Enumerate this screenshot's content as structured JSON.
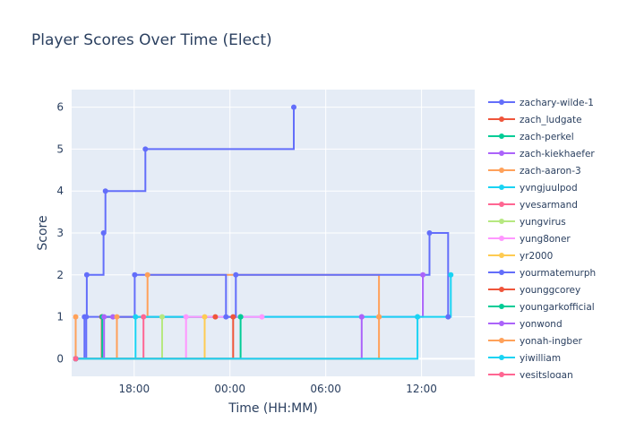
{
  "chart_data": {
    "type": "line",
    "line_shape": "step",
    "title": "Player Scores Over Time (Elect)",
    "xlabel": "Time (HH:MM)",
    "ylabel": "Score",
    "x_ticks": [
      "18:00",
      "00:00",
      "06:00",
      "12:00"
    ],
    "y_ticks": [
      0,
      1,
      2,
      3,
      4,
      5,
      6
    ],
    "xlim": [
      "14:05",
      "15:20 (+1 day)"
    ],
    "ylim": [
      -0.42,
      6.42
    ],
    "grid": true,
    "legend_position": "right",
    "series": [
      {
        "name": "zachary-wilde-1",
        "color": "#636efa",
        "points": [
          [
            "14:20",
            0
          ],
          [
            "14:53",
            1
          ],
          [
            "15:02",
            2
          ],
          [
            "16:05",
            3
          ],
          [
            "16:12",
            4
          ],
          [
            "18:42",
            5
          ],
          [
            "04:00",
            6
          ]
        ]
      },
      {
        "name": "zach_ludgate",
        "color": "#EF553B",
        "points": [
          [
            "14:20",
            0
          ],
          [
            "15:58",
            1
          ],
          [
            "23:05",
            1
          ]
        ]
      },
      {
        "name": "zach-perkel",
        "color": "#00cc96",
        "points": [
          [
            "14:20",
            0
          ],
          [
            "16:00",
            1
          ],
          [
            "00:40",
            1
          ]
        ]
      },
      {
        "name": "zach-kiekhaefer",
        "color": "#ab63fa",
        "points": [
          [
            "14:20",
            0
          ],
          [
            "16:07",
            1
          ],
          [
            "16:40",
            1
          ],
          [
            "08:15",
            1
          ],
          [
            "12:05",
            2
          ]
        ]
      },
      {
        "name": "zach-aaron-3",
        "color": "#FFA15A",
        "points": [
          [
            "14:20",
            1
          ],
          [
            "14:20",
            0
          ],
          [
            "16:55",
            1
          ],
          [
            "18:50",
            2
          ],
          [
            "09:20",
            1
          ]
        ]
      },
      {
        "name": "yvngjuulpod",
        "color": "#19d3f3",
        "points": [
          [
            "14:20",
            0
          ],
          [
            "18:05",
            1
          ],
          [
            "11:45",
            1
          ],
          [
            "13:50",
            2
          ]
        ]
      },
      {
        "name": "yvesarmand",
        "color": "#FF6692",
        "points": [
          [
            "14:20",
            0
          ],
          [
            "18:35",
            1
          ]
        ]
      },
      {
        "name": "yungvirus",
        "color": "#B6E880",
        "points": [
          [
            "14:20",
            0
          ],
          [
            "19:45",
            1
          ]
        ]
      },
      {
        "name": "yung8oner",
        "color": "#FF97FF",
        "points": [
          [
            "14:20",
            0
          ],
          [
            "21:15",
            1
          ],
          [
            "02:00",
            1
          ]
        ]
      },
      {
        "name": "yr2000",
        "color": "#FECB52",
        "points": [
          [
            "14:20",
            0
          ],
          [
            "22:25",
            1
          ]
        ]
      },
      {
        "name": "yourmatemurph",
        "color": "#636efa",
        "points": [
          [
            "14:20",
            0
          ],
          [
            "15:00",
            1
          ],
          [
            "18:02",
            2
          ],
          [
            "23:45",
            1
          ],
          [
            "00:22",
            2
          ],
          [
            "12:30",
            3
          ],
          [
            "13:40",
            1
          ]
        ]
      },
      {
        "name": "younggcorey",
        "color": "#EF553B",
        "points": [
          [
            "14:20",
            0
          ],
          [
            "00:12",
            1
          ]
        ]
      },
      {
        "name": "youngarkofficial",
        "color": "#00cc96",
        "points": [
          [
            "14:20",
            0
          ],
          [
            "00:40",
            1
          ]
        ]
      },
      {
        "name": "yonwond",
        "color": "#ab63fa",
        "points": [
          [
            "14:20",
            0
          ],
          [
            "08:15",
            1
          ]
        ]
      },
      {
        "name": "yonah-ingber",
        "color": "#FFA15A",
        "points": [
          [
            "14:20",
            0
          ],
          [
            "09:20",
            1
          ]
        ]
      },
      {
        "name": "yiwilliam",
        "color": "#19d3f3",
        "points": [
          [
            "14:20",
            0
          ],
          [
            "11:45",
            1
          ]
        ]
      },
      {
        "name": "yesitslogan",
        "color": "#FF6692",
        "points": [
          [
            "14:20",
            0
          ]
        ]
      }
    ]
  }
}
